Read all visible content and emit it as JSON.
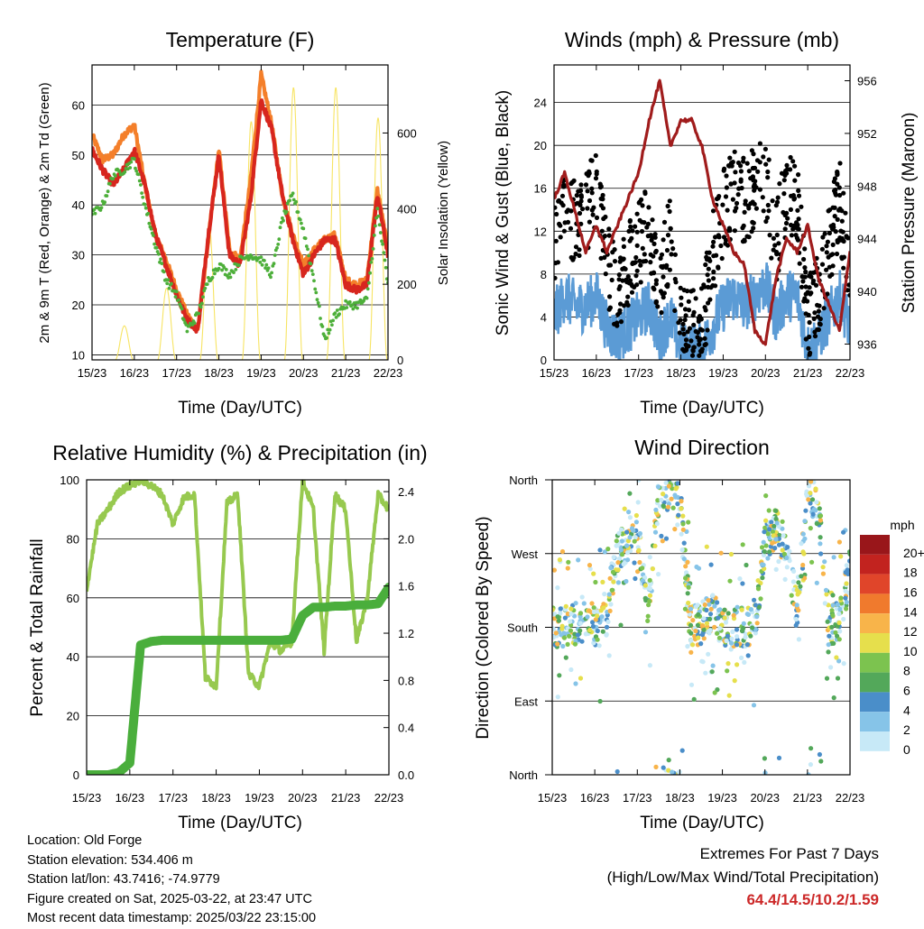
{
  "charts": {
    "temperature": {
      "title": "Temperature (F)",
      "ylabel": "2m & 9m T (Red, Orange) & 2m Td (Green)",
      "y2label": "Solar Insolation (Yellow)",
      "xlabel": "Time (Day/UTC)"
    },
    "winds": {
      "title": "Winds (mph) & Pressure (mb)",
      "ylabel": "Sonic Wind & Gust (Blue, Black)",
      "y2label": "Station Pressure (Maroon)",
      "xlabel": "Time (Day/UTC)"
    },
    "humidity": {
      "title": "Relative Humidity (%) & Precipitation (in)",
      "ylabel": "Percent & Total Rainfall",
      "xlabel": "Time (Day/UTC)"
    },
    "direction": {
      "title": "Wind Direction",
      "ylabel": "Direction (Colored By Speed)",
      "xlabel": "Time (Day/UTC)",
      "legend_title": "mph"
    }
  },
  "footer": {
    "location": "Location: Old Forge",
    "elevation": "Station elevation: 534.406 m",
    "latlon": "Station lat/lon: 43.7416; -74.9779",
    "created": "Figure created on Sat, 2025-03-22, at 23:47 UTC",
    "recent": "Most recent data timestamp: 2025/03/22 23:15:00"
  },
  "extremes": {
    "title": "Extremes For Past 7 Days",
    "subtitle": "(High/Low/Max Wind/Total Precipitation)",
    "values": "64.4/14.5/10.2/1.59"
  },
  "colors": {
    "temp2m": "#d7261e",
    "temp9m": "#f47f2a",
    "dewpoint": "#4daf3a",
    "solar": "#f7e463",
    "wind": "#5b9bd5",
    "gust": "#000000",
    "pressure": "#a01c1c",
    "rh": "#97c94f",
    "precip": "#4aae3c"
  },
  "chart_data": [
    {
      "type": "line",
      "panel": "temperature",
      "title": "Temperature (F)",
      "xlabel": "Time (Day/UTC)",
      "ylabel": "2m & 9m T (Red, Orange) & 2m Td (Green)",
      "y2label": "Solar Insolation (Yellow)",
      "x_ticks": [
        "15/23",
        "16/23",
        "17/23",
        "18/23",
        "19/23",
        "20/23",
        "21/23",
        "22/23"
      ],
      "ylim": [
        9,
        68
      ],
      "y_ticks": [
        10,
        20,
        30,
        40,
        50,
        60
      ],
      "y2lim": [
        0,
        780
      ],
      "y2_ticks": [
        0,
        200,
        400,
        600
      ],
      "x": [
        0,
        0.25,
        0.5,
        0.75,
        1,
        1.25,
        1.5,
        1.75,
        2,
        2.25,
        2.5,
        2.75,
        3,
        3.25,
        3.5,
        3.75,
        4,
        4.25,
        4.5,
        4.75,
        5,
        5.25,
        5.5,
        5.75,
        6,
        6.25,
        6.5,
        6.75,
        7
      ],
      "series": [
        {
          "name": "2m T",
          "values": [
            51,
            47,
            44,
            47,
            51,
            44,
            34,
            28,
            22,
            17,
            15,
            34,
            50,
            30,
            28,
            41,
            61,
            55,
            42,
            33,
            26,
            30,
            33,
            33,
            24,
            23,
            24,
            42,
            30
          ]
        },
        {
          "name": "9m T",
          "values": [
            54,
            49,
            50,
            54,
            56,
            44,
            34,
            29,
            23,
            18,
            15,
            33,
            51,
            31,
            29,
            45,
            66,
            56,
            42,
            34,
            28,
            31,
            33,
            34,
            25,
            24,
            25,
            43,
            31
          ]
        },
        {
          "name": "2m Td",
          "values": [
            38,
            40,
            46,
            47,
            49,
            40,
            32,
            25,
            22,
            15,
            18,
            25,
            28,
            26,
            29,
            30,
            29,
            26,
            37,
            42,
            35,
            25,
            13,
            18,
            20,
            20,
            21,
            39,
            24
          ]
        },
        {
          "name": "Solar",
          "values": [
            0,
            0,
            0,
            90,
            0,
            0,
            0,
            190,
            0,
            0,
            0,
            360,
            0,
            0,
            0,
            630,
            0,
            0,
            0,
            720,
            0,
            0,
            0,
            720,
            0,
            0,
            0,
            640,
            0
          ]
        }
      ]
    },
    {
      "type": "scatter",
      "panel": "winds",
      "title": "Winds (mph) & Pressure (mb)",
      "xlabel": "Time (Day/UTC)",
      "ylabel": "Sonic Wind & Gust (Blue, Black)",
      "y2label": "Station Pressure (Maroon)",
      "x_ticks": [
        "15/23",
        "16/23",
        "17/23",
        "18/23",
        "19/23",
        "20/23",
        "21/23",
        "22/23"
      ],
      "ylim": [
        0,
        27.5
      ],
      "y_ticks": [
        0,
        4,
        8,
        12,
        16,
        20,
        24
      ],
      "y2lim": [
        934.8,
        957.2
      ],
      "y2_ticks": [
        936,
        940,
        944,
        948,
        952,
        956
      ],
      "x": [
        0,
        0.25,
        0.5,
        0.75,
        1,
        1.25,
        1.5,
        1.75,
        2,
        2.25,
        2.5,
        2.75,
        3,
        3.25,
        3.5,
        3.75,
        4,
        4.25,
        4.5,
        4.75,
        5,
        5.25,
        5.5,
        5.75,
        6,
        6.25,
        6.5,
        6.75,
        7
      ],
      "series": [
        {
          "name": "Wind",
          "values": [
            4,
            6,
            5,
            5,
            6,
            3,
            2,
            3,
            4,
            5,
            2,
            4,
            1,
            1,
            1,
            3,
            5,
            6,
            5,
            6,
            7,
            4,
            6,
            6,
            1,
            2,
            4,
            6,
            3
          ]
        },
        {
          "name": "Gust",
          "values": [
            10,
            14,
            12,
            13,
            15,
            8,
            5,
            8,
            10,
            12,
            6,
            11,
            2,
            2,
            2,
            9,
            13,
            15,
            14,
            15,
            16,
            10,
            15,
            14,
            3,
            5,
            10,
            14,
            8
          ]
        },
        {
          "name": "Pressure",
          "values": [
            947,
            949,
            946,
            943,
            945,
            943,
            945,
            947,
            949,
            953,
            956,
            951,
            953,
            953,
            951,
            947,
            945,
            943,
            942,
            937,
            936,
            941,
            944,
            943,
            945,
            941,
            939,
            937,
            943
          ]
        }
      ]
    },
    {
      "type": "line",
      "panel": "humidity",
      "title": "Relative Humidity (%) & Precipitation (in)",
      "xlabel": "Time (Day/UTC)",
      "ylabel": "Percent & Total Rainfall",
      "x_ticks": [
        "15/23",
        "16/23",
        "17/23",
        "18/23",
        "19/23",
        "20/23",
        "21/23",
        "22/23"
      ],
      "ylim": [
        0,
        100
      ],
      "y_ticks": [
        0,
        20,
        40,
        60,
        80,
        100
      ],
      "y2lim": [
        0,
        2.5
      ],
      "y2_ticks": [
        0.0,
        0.4,
        0.8,
        1.2,
        1.6,
        2.0,
        2.4
      ],
      "x": [
        0,
        0.25,
        0.5,
        0.75,
        1,
        1.25,
        1.5,
        1.75,
        2,
        2.25,
        2.5,
        2.75,
        3,
        3.25,
        3.5,
        3.75,
        4,
        4.25,
        4.5,
        4.75,
        5,
        5.25,
        5.5,
        5.75,
        6,
        6.25,
        6.5,
        6.75,
        7
      ],
      "series": [
        {
          "name": "RH",
          "values": [
            63,
            85,
            90,
            96,
            98,
            100,
            98,
            95,
            85,
            94,
            95,
            33,
            30,
            92,
            95,
            34,
            30,
            45,
            42,
            45,
            100,
            90,
            42,
            95,
            90,
            45,
            60,
            95,
            90
          ]
        },
        {
          "name": "Precip",
          "values": [
            0,
            0,
            0,
            0.02,
            0.1,
            1.1,
            1.13,
            1.14,
            1.14,
            1.14,
            1.14,
            1.14,
            1.14,
            1.14,
            1.14,
            1.14,
            1.14,
            1.14,
            1.14,
            1.15,
            1.35,
            1.42,
            1.42,
            1.43,
            1.43,
            1.44,
            1.44,
            1.45,
            1.59
          ]
        }
      ]
    },
    {
      "type": "scatter",
      "panel": "direction",
      "title": "Wind Direction",
      "xlabel": "Time (Day/UTC)",
      "ylabel": "Direction (Colored By Speed)",
      "x_ticks": [
        "15/23",
        "16/23",
        "17/23",
        "18/23",
        "19/23",
        "20/23",
        "21/23",
        "22/23"
      ],
      "y_ticks": [
        "North",
        "East",
        "South",
        "West",
        "North"
      ],
      "ylim": [
        0,
        360
      ],
      "legend": {
        "title": "mph",
        "levels": [
          "0",
          "2",
          "4",
          "6",
          "8",
          "10",
          "12",
          "14",
          "16",
          "18",
          "20+"
        ],
        "colors": [
          "#c7e9f7",
          "#86c4e8",
          "#4a8ec9",
          "#53a85a",
          "#7cc34f",
          "#e6df4c",
          "#f8b44a",
          "#f07a2d",
          "#e0452a",
          "#c2231f",
          "#99161a"
        ]
      },
      "x": [
        0.25,
        0.5,
        0.75,
        1,
        1.25,
        1.5,
        1.75,
        2,
        2.25,
        2.5,
        2.75,
        3,
        3.25,
        3.5,
        3.75,
        4,
        4.25,
        4.5,
        4.75,
        5,
        5.25,
        5.5,
        5.75,
        6,
        6.25,
        6.5,
        6.75,
        7
      ],
      "series": [
        {
          "name": "Direction",
          "values": [
            180,
            182,
            178,
            180,
            185,
            270,
            285,
            300,
            200,
            340,
            350,
            340,
            180,
            185,
            200,
            178,
            180,
            182,
            180,
            285,
            300,
            280,
            200,
            340,
            330,
            180,
            190,
            250
          ]
        }
      ]
    }
  ]
}
